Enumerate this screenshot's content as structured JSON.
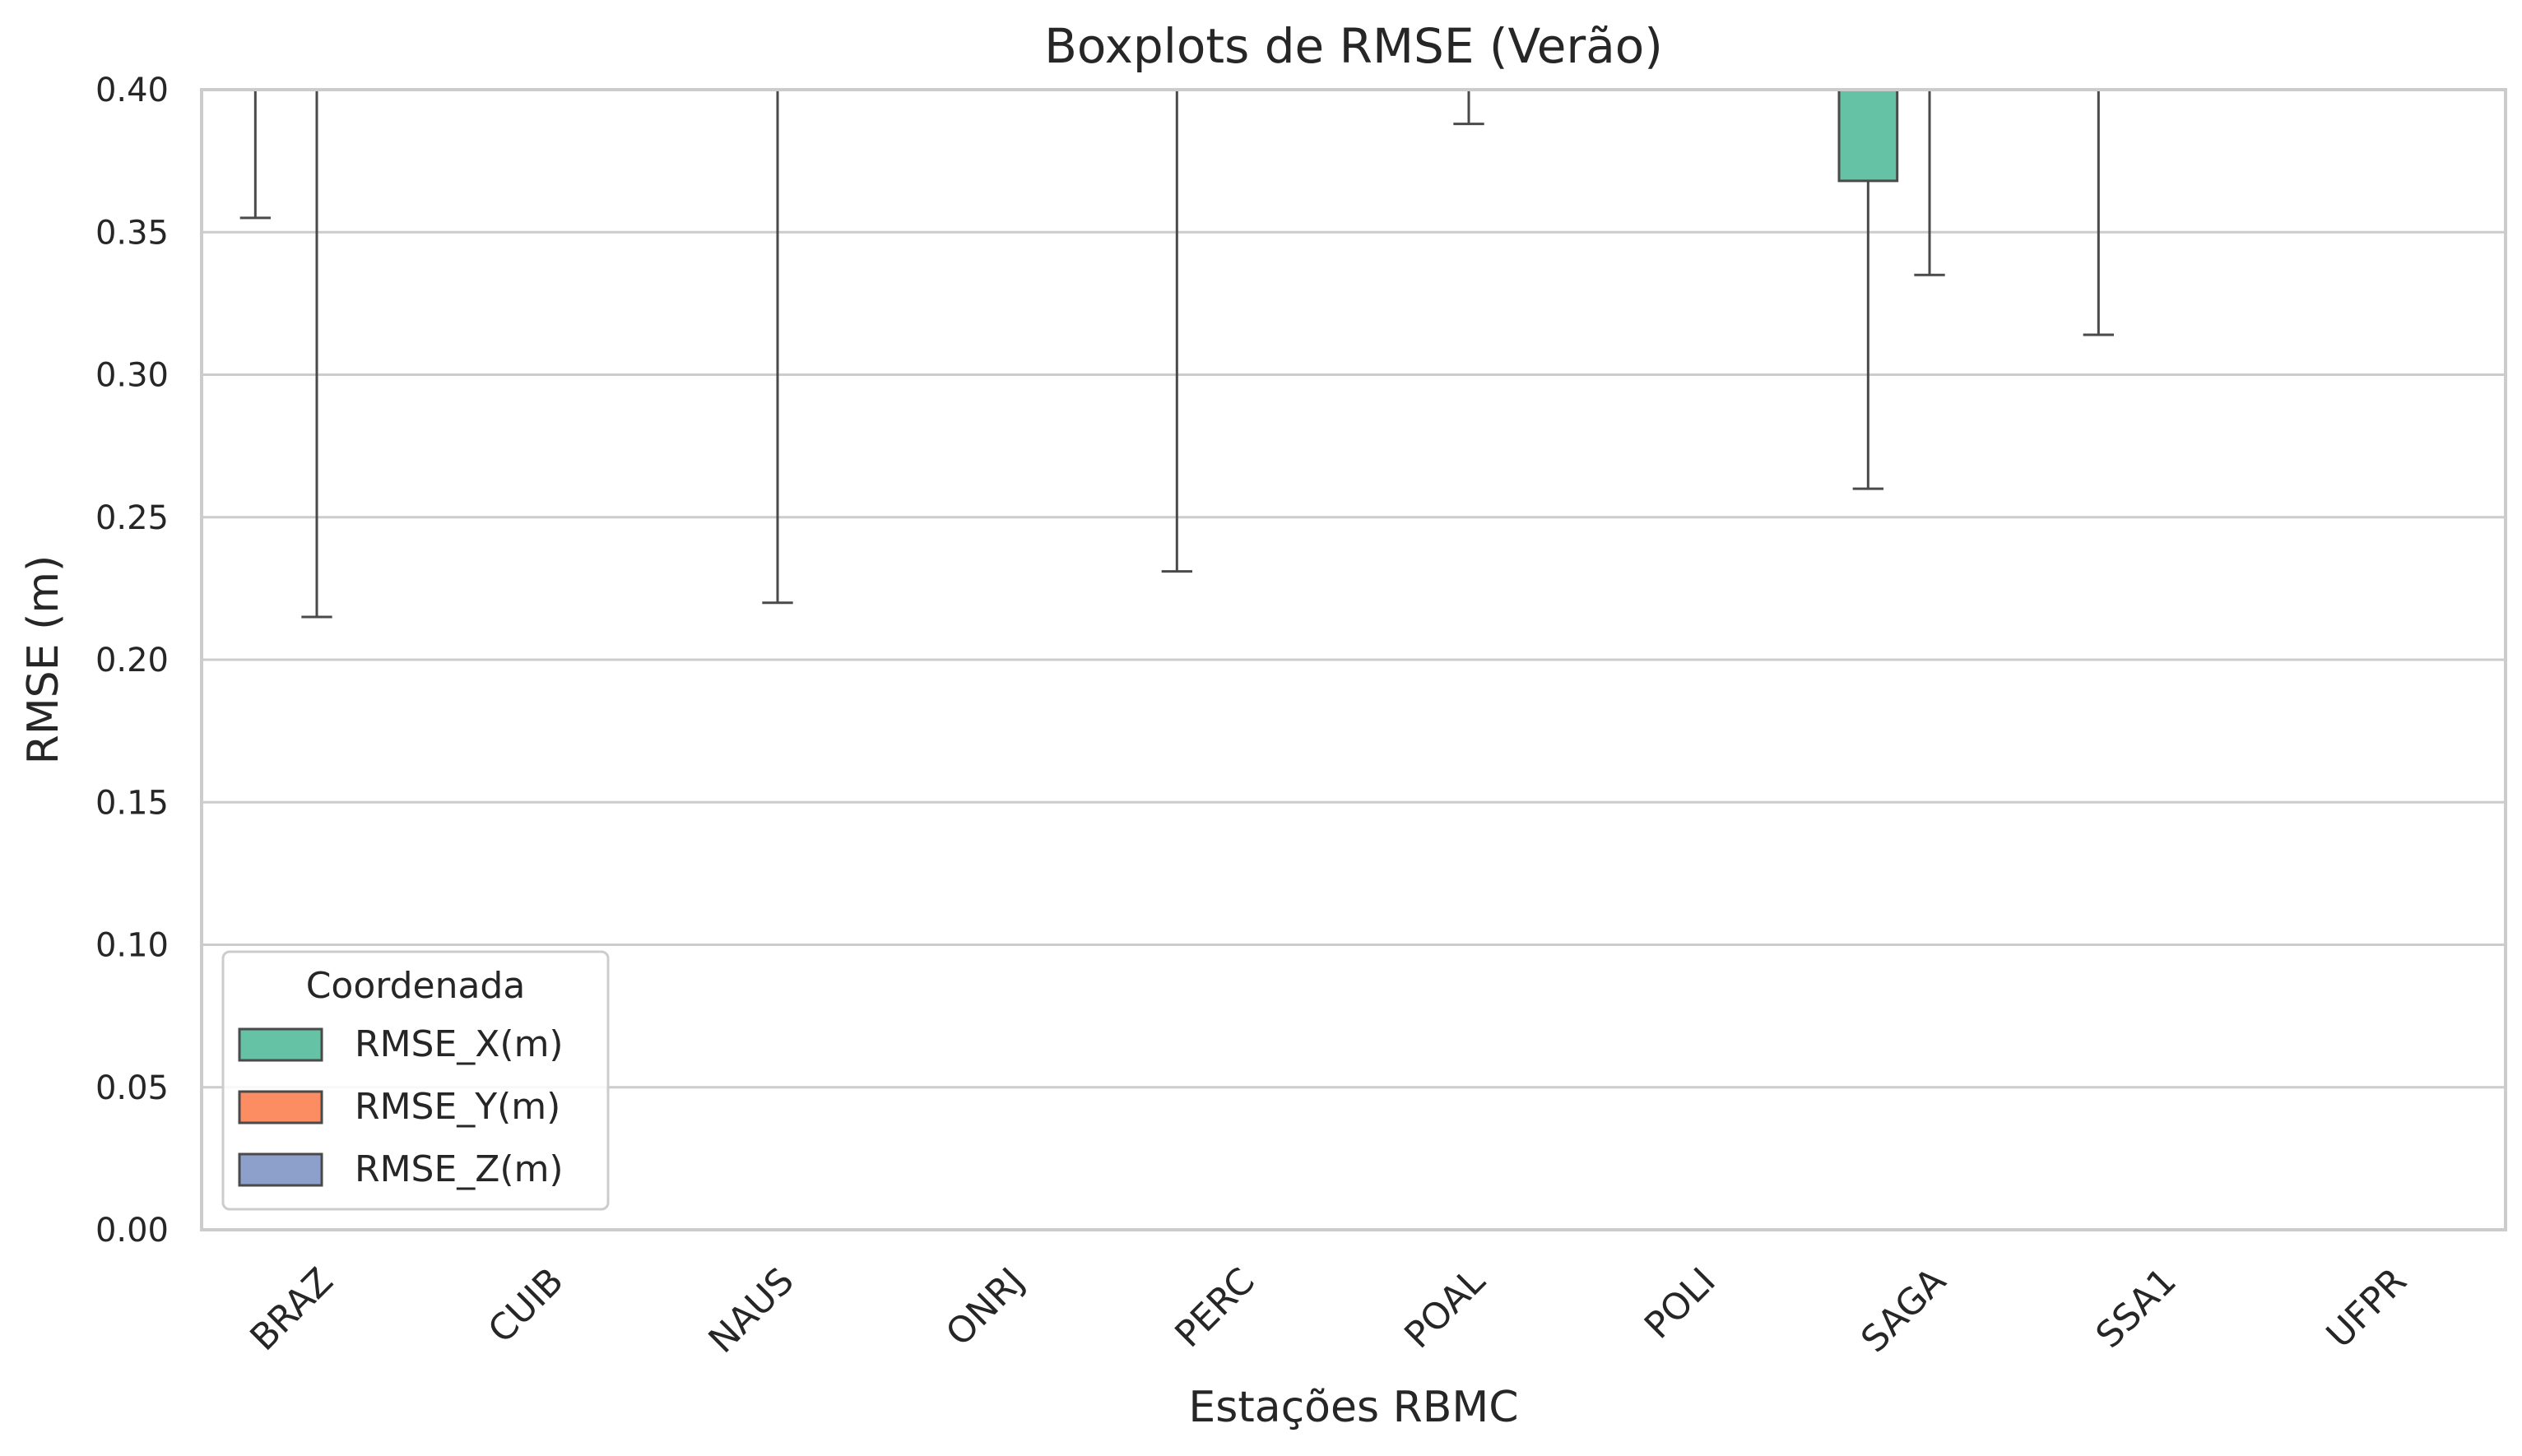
{
  "chart_data": {
    "type": "box",
    "title": "Boxplots de RMSE (Verão)",
    "xlabel": "Estações RBMC",
    "ylabel": "RMSE (m)",
    "ylim": [
      0,
      0.4
    ],
    "yticks": [
      "0.00",
      "0.05",
      "0.10",
      "0.15",
      "0.20",
      "0.25",
      "0.30",
      "0.35",
      "0.40"
    ],
    "grid": "horizontal",
    "categories": [
      "BRAZ",
      "CUIB",
      "NAUS",
      "ONRJ",
      "PERC",
      "POAL",
      "POLI",
      "SAGA",
      "SSA1",
      "UFPR"
    ],
    "legend": {
      "title": "Coordenada",
      "position": "lower-left"
    },
    "series": [
      {
        "name": "RMSE_X(m)",
        "color": "#66c2a5",
        "boxes": [
          {
            "category": "BRAZ",
            "whisker_low": 0.355,
            "clipped_above": true
          },
          {
            "category": "PERC",
            "whisker_low": 0.231,
            "clipped_above": true
          },
          {
            "category": "SAGA",
            "whisker_low": 0.26,
            "q1": 0.368,
            "clipped_above": true
          },
          {
            "category": "SSA1",
            "whisker_low": 0.314,
            "clipped_above": true
          }
        ]
      },
      {
        "name": "RMSE_Y(m)",
        "color": "#fc8d62",
        "boxes": [
          {
            "category": "BRAZ",
            "whisker_low": 0.215,
            "clipped_above": true
          },
          {
            "category": "NAUS",
            "whisker_low": 0.22,
            "clipped_above": true
          },
          {
            "category": "POAL",
            "whisker_low": 0.388,
            "clipped_above": true
          },
          {
            "category": "SAGA",
            "whisker_low": 0.335,
            "clipped_above": true
          }
        ]
      },
      {
        "name": "RMSE_Z(m)",
        "color": "#8da0cb",
        "boxes": []
      }
    ]
  }
}
